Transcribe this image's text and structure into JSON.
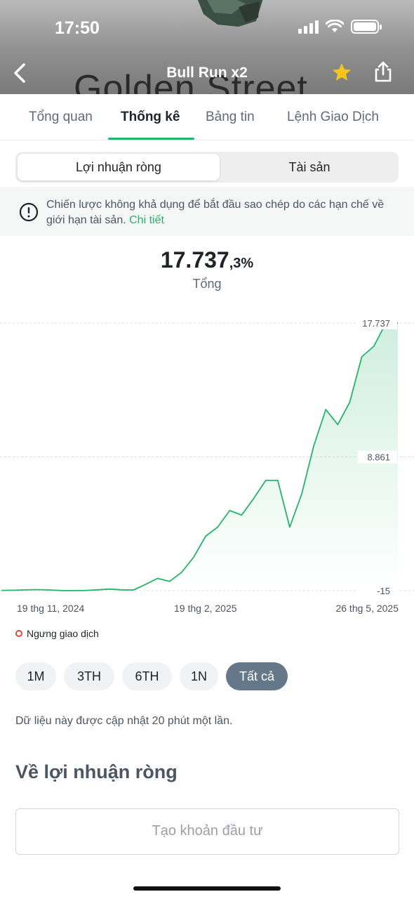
{
  "status_bar": {
    "time": "17:50"
  },
  "header": {
    "title": "Bull Run x2",
    "background_text": "Golden Street",
    "icons": {
      "back": "chevron-left-icon",
      "favorite": "star-icon",
      "share": "share-icon"
    },
    "colors": {
      "star": "#f5c518"
    }
  },
  "tabs": [
    {
      "label": "Tổng quan",
      "active": false
    },
    {
      "label": "Thống kê",
      "active": true
    },
    {
      "label": "Bảng tin",
      "active": false
    },
    {
      "label": "Lệnh Giao Dịch",
      "active": false
    }
  ],
  "segment": {
    "selected": "Lợi nhuận ròng",
    "other": "Tài sản"
  },
  "notice": {
    "icon": "exclamation-circle-icon",
    "text": "Chiến lược không khả dụng để bắt đầu sao chép do các hạn chế về giới hạn tài sản.",
    "link": "Chi tiết"
  },
  "total": {
    "value_main": "17.737",
    "value_decimal": ",3%",
    "label": "Tổng"
  },
  "chart_data": {
    "type": "area",
    "ylim": [
      -15,
      17737
    ],
    "y_ticks": [
      "17.737",
      "8.861",
      "-15"
    ],
    "x_ticks": [
      "19 thg 11, 2024",
      "19 thg 2, 2025",
      "26 thg 5, 2025"
    ],
    "grid": true,
    "color": "#26b36c",
    "series": [
      {
        "values": [
          5,
          15,
          35,
          55,
          30,
          -5,
          -10,
          0,
          40,
          90,
          40,
          30,
          400,
          800,
          600,
          1200,
          2200,
          3600,
          4200,
          5300,
          5000,
          6100,
          7300,
          7300,
          4200,
          6400,
          9600,
          12000,
          11000,
          12500,
          15500,
          16200,
          17737,
          17737
        ]
      }
    ]
  },
  "legend": {
    "label": "Ngưng giao dịch",
    "color": "#e0473c"
  },
  "periods": [
    {
      "label": "1M",
      "active": false
    },
    {
      "label": "3TH",
      "active": false
    },
    {
      "label": "6TH",
      "active": false
    },
    {
      "label": "1N",
      "active": false
    },
    {
      "label": "Tất cả",
      "active": true
    }
  ],
  "update_note": "Dữ liệu này được cập nhật 20 phút một lần.",
  "section_title": "Về lợi nhuận ròng",
  "cta_label": "Tạo khoản đầu tư"
}
